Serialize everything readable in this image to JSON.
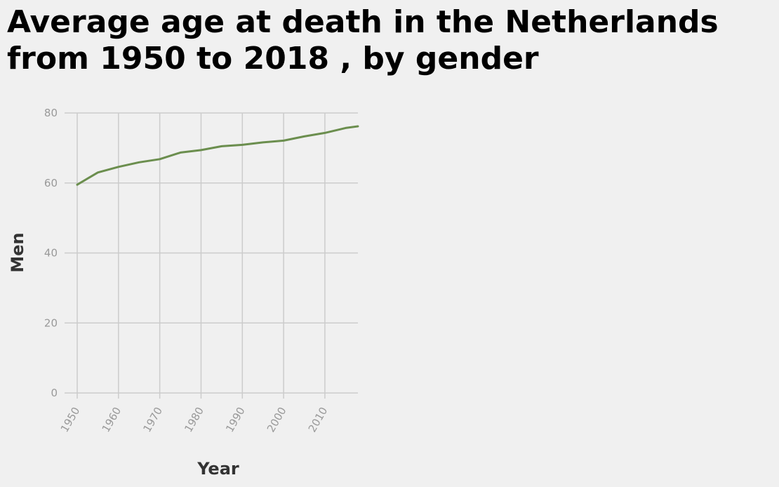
{
  "colors": {
    "background": "#f0f0f0",
    "grid": "#cccccc",
    "line": "#6b8e4e",
    "tick_text": "#999999",
    "axis_title": "#333333",
    "title": "#000000"
  },
  "chart_data": {
    "type": "line",
    "title": "Average age at death in the Netherlands from 1950 to 2018 , by gender",
    "xlabel": "Year",
    "ylabel": "Men",
    "xlim": [
      1950,
      2018
    ],
    "ylim": [
      0,
      80
    ],
    "x_ticks": [
      1950,
      1960,
      1970,
      1980,
      1990,
      2000,
      2010
    ],
    "y_ticks": [
      0,
      20,
      40,
      60,
      80
    ],
    "grid": true,
    "legend": "none",
    "series": [
      {
        "x": [
          1950,
          1955,
          1960,
          1965,
          1970,
          1975,
          1980,
          1985,
          1990,
          1995,
          2000,
          2005,
          2010,
          2015,
          2018
        ],
        "y": [
          59.5,
          63.0,
          64.6,
          65.9,
          66.8,
          68.7,
          69.4,
          70.5,
          70.9,
          71.6,
          72.1,
          73.3,
          74.3,
          75.7,
          76.2
        ]
      }
    ]
  }
}
